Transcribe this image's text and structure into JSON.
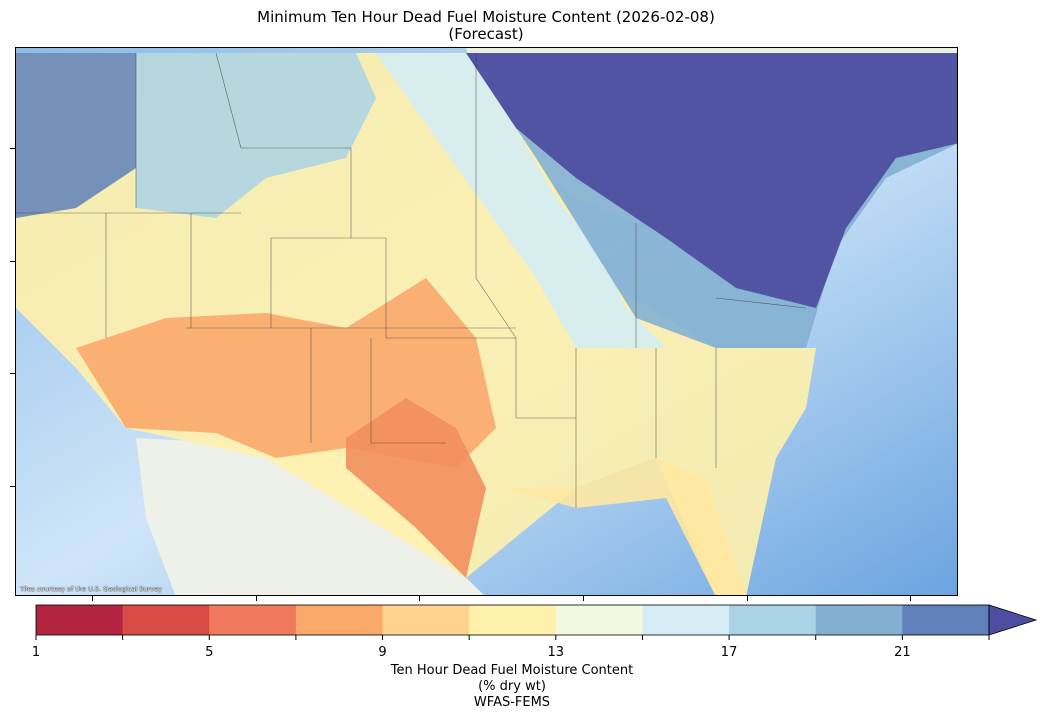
{
  "title": {
    "line1": "Minimum Ten Hour Dead Fuel Moisture Content (2026-02-08)",
    "line2": "(Forecast)"
  },
  "map": {
    "attribution": "Tiles courtesy of the U.S. Geological Survey"
  },
  "colorbar": {
    "min": 1,
    "max": 23,
    "step": 2,
    "extend": "max",
    "ticks": [
      "1",
      "5",
      "9",
      "13",
      "17",
      "21"
    ],
    "colors": [
      "#b2243f",
      "#d94b45",
      "#f07a5b",
      "#fba86b",
      "#fed38e",
      "#fff1ac",
      "#f3f9df",
      "#d4ecf3",
      "#a9d2e4",
      "#83b0d2",
      "#5f80ba"
    ],
    "extend_color": "#4e4ea0",
    "label_line1": "Ten Hour Dead Fuel Moisture Content",
    "label_line2": "(% dry wt)",
    "label_line3": "WFAS-FEMS"
  }
}
